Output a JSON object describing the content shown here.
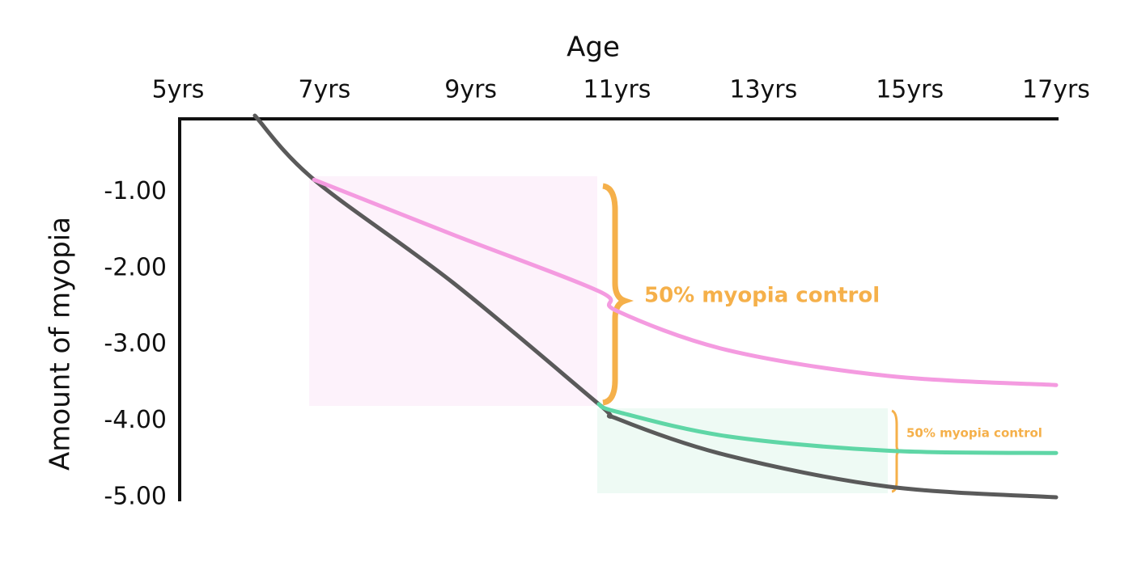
{
  "chart_data": {
    "type": "line",
    "xlabel": "Age",
    "ylabel": "Amount of myopia",
    "x": [
      6.05,
      6.86,
      8.76,
      10.75,
      11.0,
      12.5,
      14.7,
      17
    ],
    "xlim": [
      5,
      17
    ],
    "xticks": [
      {
        "value": 5,
        "label": "5yrs"
      },
      {
        "value": 7,
        "label": "7yrs"
      },
      {
        "value": 9,
        "label": "9yrs"
      },
      {
        "value": 11,
        "label": "11yrs"
      },
      {
        "value": 13,
        "label": "13yrs"
      },
      {
        "value": 15,
        "label": "15yrs"
      },
      {
        "value": 17,
        "label": "17yrs"
      }
    ],
    "ylim": [
      -5,
      0
    ],
    "yticks": [
      {
        "value": -1,
        "label": "-1.00"
      },
      {
        "value": -2,
        "label": "-2.00"
      },
      {
        "value": -3,
        "label": "-3.00"
      },
      {
        "value": -4,
        "label": "-4.00"
      },
      {
        "value": -5,
        "label": "-5.00"
      }
    ],
    "series": [
      {
        "color": "#5a5a5a",
        "values": [
          0,
          -0.84,
          -2.19,
          -3.78,
          -3.97,
          -4.45,
          -4.86,
          -5.0
        ]
      },
      {
        "color": "#f49be0",
        "values": [
          null,
          -0.84,
          -1.56,
          -2.3,
          -2.56,
          -3.07,
          -3.41,
          -3.53
        ]
      },
      {
        "color": "#5fd6a6",
        "values": [
          null,
          null,
          null,
          -3.78,
          -3.88,
          -4.2,
          -4.39,
          -4.42
        ]
      }
    ],
    "annotations": [
      "50% myopia control",
      "50% myopia control"
    ]
  }
}
